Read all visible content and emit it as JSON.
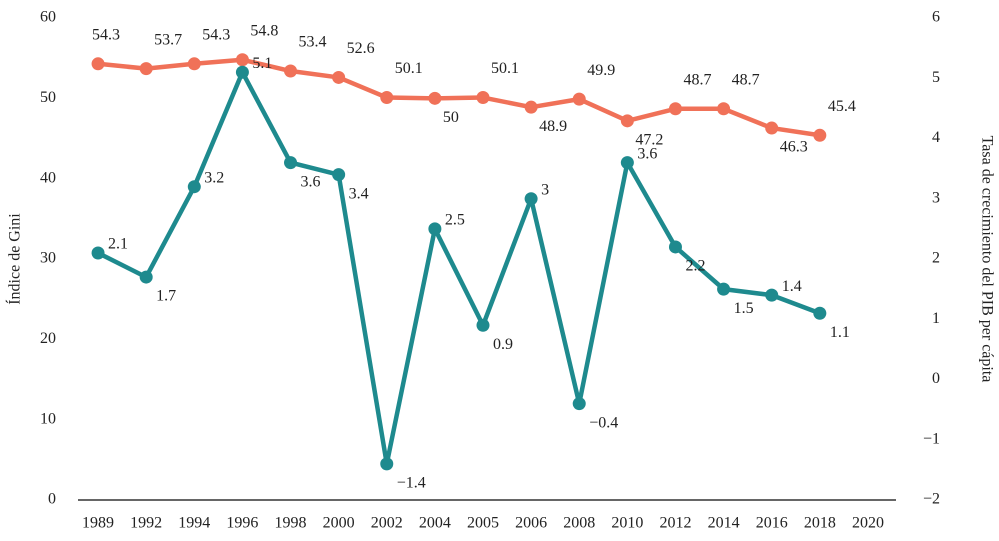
{
  "chart_data": {
    "type": "line",
    "y_label": "Índice de Gini",
    "y2_label": "Tasa de crecimiento del PIB per cápita",
    "categories": [
      "1989",
      "1992",
      "1994",
      "1996",
      "1998",
      "2000",
      "2002",
      "2004",
      "2005",
      "2006",
      "2008",
      "2010",
      "2012",
      "2014",
      "2016",
      "2018",
      "2020"
    ],
    "series": [
      {
        "name": "Índice de Gini",
        "color": "#f07158",
        "values": [
          54.3,
          53.7,
          54.3,
          54.8,
          53.4,
          52.6,
          50.1,
          50,
          50.1,
          48.9,
          49.9,
          47.2,
          48.7,
          48.7,
          46.3,
          45.4,
          null
        ]
      },
      {
        "name": "Tasa de crecimiento del PIB per cápita",
        "color": "#1e8a8e",
        "axis": "y2",
        "values": [
          2.1,
          1.7,
          3.2,
          5.1,
          3.6,
          3.4,
          -1.4,
          2.5,
          0.9,
          3,
          -0.4,
          3.6,
          2.2,
          1.5,
          1.4,
          1.1,
          null
        ],
        "value_labels": [
          "2.1",
          "1.7",
          "3.2",
          "5.1",
          "3.6",
          "3.4",
          "−1.4",
          "2.5",
          "0.9",
          "3",
          "−0.4",
          "3.6",
          "2.2",
          "1.5",
          "1.4",
          "1.1",
          null
        ]
      }
    ],
    "ylim": [
      0,
      60
    ],
    "yticks": [
      0,
      10,
      20,
      30,
      40,
      50,
      60
    ],
    "y2lim": [
      -2,
      6
    ],
    "y2ticks": [
      {
        "value": -2,
        "label": "−2"
      },
      {
        "value": -1,
        "label": "−1"
      },
      0,
      1,
      2,
      3,
      4,
      5,
      6
    ]
  }
}
